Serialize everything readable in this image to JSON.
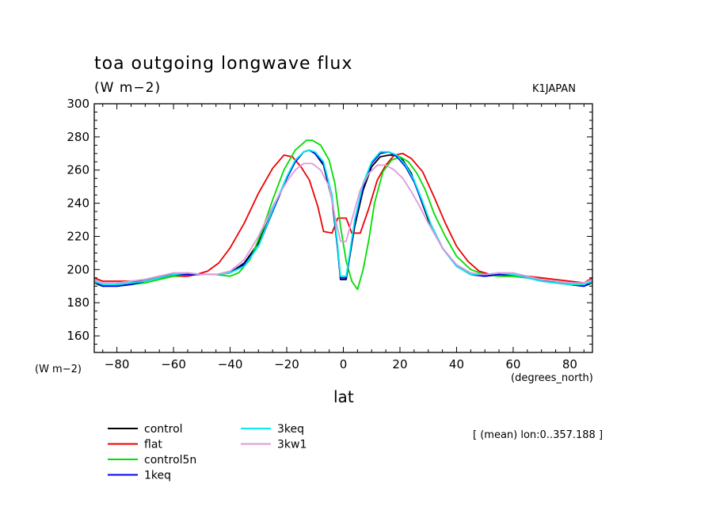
{
  "chart_data": {
    "type": "line",
    "title": "toa outgoing longwave flux",
    "units": "(W m−2)",
    "model": "K1JAPAN",
    "ylabel": "(W m−2)",
    "xlabel": "lat",
    "xunits": "(degrees_north)",
    "footnote": "[ (mean) lon:0..357.188 ]",
    "xlim": [
      -88,
      88
    ],
    "ylim": [
      150,
      300
    ],
    "xticks": [
      -80,
      -60,
      -40,
      -20,
      0,
      20,
      40,
      60,
      80
    ],
    "yticks": [
      160,
      180,
      200,
      220,
      240,
      260,
      280,
      300
    ],
    "grid": false,
    "legend_position": "bottom-left",
    "series": [
      {
        "name": "control",
        "color": "#000000",
        "points": [
          [
            -88,
            192
          ],
          [
            -85,
            190
          ],
          [
            -80,
            191
          ],
          [
            -75,
            192
          ],
          [
            -70,
            194
          ],
          [
            -65,
            196
          ],
          [
            -60,
            197
          ],
          [
            -55,
            197
          ],
          [
            -50,
            197
          ],
          [
            -45,
            197
          ],
          [
            -40,
            198
          ],
          [
            -35,
            204
          ],
          [
            -30,
            216
          ],
          [
            -25,
            236
          ],
          [
            -20,
            255
          ],
          [
            -17,
            265
          ],
          [
            -14,
            271
          ],
          [
            -12,
            272
          ],
          [
            -10,
            270
          ],
          [
            -7,
            263
          ],
          [
            -4,
            242
          ],
          [
            -2,
            212
          ],
          [
            -1,
            194
          ],
          [
            1,
            194
          ],
          [
            2,
            205
          ],
          [
            4,
            226
          ],
          [
            7,
            248
          ],
          [
            10,
            262
          ],
          [
            13,
            268
          ],
          [
            16,
            269
          ],
          [
            19,
            269
          ],
          [
            21,
            266
          ],
          [
            24,
            258
          ],
          [
            27,
            244
          ],
          [
            30,
            230
          ],
          [
            35,
            213
          ],
          [
            40,
            202
          ],
          [
            45,
            197
          ],
          [
            50,
            196
          ],
          [
            55,
            197
          ],
          [
            60,
            196
          ],
          [
            65,
            195
          ],
          [
            70,
            194
          ],
          [
            75,
            192
          ],
          [
            80,
            191
          ],
          [
            85,
            190
          ],
          [
            88,
            192
          ]
        ]
      },
      {
        "name": "flat",
        "color": "#ee0000",
        "points": [
          [
            -88,
            195
          ],
          [
            -85,
            193
          ],
          [
            -80,
            193
          ],
          [
            -75,
            193
          ],
          [
            -70,
            194
          ],
          [
            -65,
            195
          ],
          [
            -60,
            196
          ],
          [
            -55,
            196
          ],
          [
            -52,
            197
          ],
          [
            -48,
            199
          ],
          [
            -44,
            204
          ],
          [
            -40,
            213
          ],
          [
            -35,
            228
          ],
          [
            -30,
            246
          ],
          [
            -25,
            261
          ],
          [
            -21,
            269
          ],
          [
            -18,
            268
          ],
          [
            -15,
            262
          ],
          [
            -12,
            254
          ],
          [
            -9,
            238
          ],
          [
            -7,
            223
          ],
          [
            -4,
            222
          ],
          [
            -2,
            231
          ],
          [
            1,
            231
          ],
          [
            3,
            222
          ],
          [
            6,
            222
          ],
          [
            9,
            237
          ],
          [
            12,
            254
          ],
          [
            15,
            263
          ],
          [
            18,
            269
          ],
          [
            21,
            270
          ],
          [
            24,
            267
          ],
          [
            28,
            259
          ],
          [
            32,
            244
          ],
          [
            36,
            228
          ],
          [
            40,
            214
          ],
          [
            44,
            205
          ],
          [
            48,
            199
          ],
          [
            52,
            197
          ],
          [
            56,
            196
          ],
          [
            60,
            196
          ],
          [
            65,
            196
          ],
          [
            70,
            195
          ],
          [
            75,
            194
          ],
          [
            80,
            193
          ],
          [
            85,
            192
          ],
          [
            88,
            195
          ]
        ]
      },
      {
        "name": "control5n",
        "color": "#00dd00",
        "points": [
          [
            -88,
            192
          ],
          [
            -85,
            191
          ],
          [
            -80,
            190
          ],
          [
            -75,
            191
          ],
          [
            -70,
            192
          ],
          [
            -65,
            194
          ],
          [
            -60,
            196
          ],
          [
            -55,
            197
          ],
          [
            -50,
            197
          ],
          [
            -45,
            197
          ],
          [
            -40,
            196
          ],
          [
            -37,
            198
          ],
          [
            -33,
            206
          ],
          [
            -29,
            222
          ],
          [
            -25,
            242
          ],
          [
            -21,
            260
          ],
          [
            -17,
            272
          ],
          [
            -13,
            278
          ],
          [
            -11,
            278
          ],
          [
            -8,
            275
          ],
          [
            -5,
            266
          ],
          [
            -3,
            252
          ],
          [
            -1,
            226
          ],
          [
            1,
            205
          ],
          [
            3,
            193
          ],
          [
            5,
            188
          ],
          [
            7,
            200
          ],
          [
            9,
            218
          ],
          [
            11,
            240
          ],
          [
            14,
            259
          ],
          [
            17,
            266
          ],
          [
            20,
            268
          ],
          [
            23,
            265
          ],
          [
            26,
            258
          ],
          [
            29,
            248
          ],
          [
            32,
            234
          ],
          [
            36,
            220
          ],
          [
            40,
            208
          ],
          [
            45,
            200
          ],
          [
            50,
            197
          ],
          [
            55,
            196
          ],
          [
            60,
            196
          ],
          [
            65,
            195
          ],
          [
            70,
            194
          ],
          [
            75,
            193
          ],
          [
            80,
            192
          ],
          [
            85,
            191
          ],
          [
            88,
            192
          ]
        ]
      },
      {
        "name": "1keq",
        "color": "#0000ee",
        "points": [
          [
            -88,
            193
          ],
          [
            -85,
            190
          ],
          [
            -80,
            190
          ],
          [
            -75,
            191
          ],
          [
            -70,
            193
          ],
          [
            -65,
            195
          ],
          [
            -60,
            197
          ],
          [
            -55,
            197
          ],
          [
            -50,
            197
          ],
          [
            -45,
            197
          ],
          [
            -40,
            198
          ],
          [
            -35,
            203
          ],
          [
            -30,
            214
          ],
          [
            -25,
            235
          ],
          [
            -20,
            255
          ],
          [
            -17,
            265
          ],
          [
            -14,
            271
          ],
          [
            -12,
            272
          ],
          [
            -10,
            270
          ],
          [
            -7,
            264
          ],
          [
            -4,
            244
          ],
          [
            -2,
            213
          ],
          [
            -1,
            195
          ],
          [
            1,
            195
          ],
          [
            2,
            206
          ],
          [
            4,
            228
          ],
          [
            7,
            250
          ],
          [
            10,
            264
          ],
          [
            13,
            270
          ],
          [
            16,
            271
          ],
          [
            19,
            268
          ],
          [
            22,
            262
          ],
          [
            25,
            253
          ],
          [
            28,
            240
          ],
          [
            31,
            227
          ],
          [
            35,
            213
          ],
          [
            40,
            202
          ],
          [
            45,
            197
          ],
          [
            50,
            196
          ],
          [
            55,
            197
          ],
          [
            60,
            197
          ],
          [
            65,
            195
          ],
          [
            70,
            193
          ],
          [
            75,
            192
          ],
          [
            80,
            191
          ],
          [
            85,
            190
          ],
          [
            88,
            193
          ]
        ]
      },
      {
        "name": "3keq",
        "color": "#00eeee",
        "points": [
          [
            -88,
            193
          ],
          [
            -85,
            191
          ],
          [
            -80,
            191
          ],
          [
            -75,
            192
          ],
          [
            -70,
            193
          ],
          [
            -65,
            195
          ],
          [
            -60,
            197
          ],
          [
            -55,
            198
          ],
          [
            -50,
            197
          ],
          [
            -45,
            197
          ],
          [
            -40,
            198
          ],
          [
            -35,
            202
          ],
          [
            -30,
            214
          ],
          [
            -25,
            236
          ],
          [
            -20,
            256
          ],
          [
            -17,
            266
          ],
          [
            -14,
            271
          ],
          [
            -12,
            272
          ],
          [
            -10,
            271
          ],
          [
            -7,
            265
          ],
          [
            -4,
            245
          ],
          [
            -2,
            214
          ],
          [
            -1,
            196
          ],
          [
            1,
            196
          ],
          [
            2,
            207
          ],
          [
            4,
            230
          ],
          [
            7,
            252
          ],
          [
            10,
            265
          ],
          [
            13,
            271
          ],
          [
            16,
            271
          ],
          [
            19,
            269
          ],
          [
            22,
            263
          ],
          [
            25,
            254
          ],
          [
            28,
            241
          ],
          [
            31,
            227
          ],
          [
            35,
            213
          ],
          [
            40,
            202
          ],
          [
            45,
            197
          ],
          [
            50,
            197
          ],
          [
            55,
            198
          ],
          [
            60,
            197
          ],
          [
            65,
            195
          ],
          [
            70,
            193
          ],
          [
            75,
            192
          ],
          [
            80,
            191
          ],
          [
            85,
            191
          ],
          [
            88,
            193
          ]
        ]
      },
      {
        "name": "3kw1",
        "color": "#dd99dd",
        "points": [
          [
            -88,
            194
          ],
          [
            -85,
            192
          ],
          [
            -80,
            192
          ],
          [
            -75,
            193
          ],
          [
            -70,
            194
          ],
          [
            -65,
            196
          ],
          [
            -60,
            198
          ],
          [
            -55,
            198
          ],
          [
            -50,
            197
          ],
          [
            -45,
            197
          ],
          [
            -40,
            199
          ],
          [
            -35,
            206
          ],
          [
            -30,
            220
          ],
          [
            -25,
            238
          ],
          [
            -20,
            253
          ],
          [
            -17,
            260
          ],
          [
            -14,
            264
          ],
          [
            -11,
            264
          ],
          [
            -8,
            260
          ],
          [
            -5,
            250
          ],
          [
            -3,
            232
          ],
          [
            -1,
            217
          ],
          [
            1,
            217
          ],
          [
            3,
            230
          ],
          [
            6,
            248
          ],
          [
            9,
            258
          ],
          [
            12,
            263
          ],
          [
            15,
            263
          ],
          [
            18,
            260
          ],
          [
            21,
            255
          ],
          [
            24,
            247
          ],
          [
            27,
            238
          ],
          [
            30,
            228
          ],
          [
            35,
            213
          ],
          [
            40,
            203
          ],
          [
            45,
            198
          ],
          [
            50,
            197
          ],
          [
            55,
            198
          ],
          [
            60,
            198
          ],
          [
            65,
            196
          ],
          [
            70,
            194
          ],
          [
            75,
            193
          ],
          [
            80,
            192
          ],
          [
            85,
            192
          ],
          [
            88,
            194
          ]
        ]
      }
    ]
  }
}
